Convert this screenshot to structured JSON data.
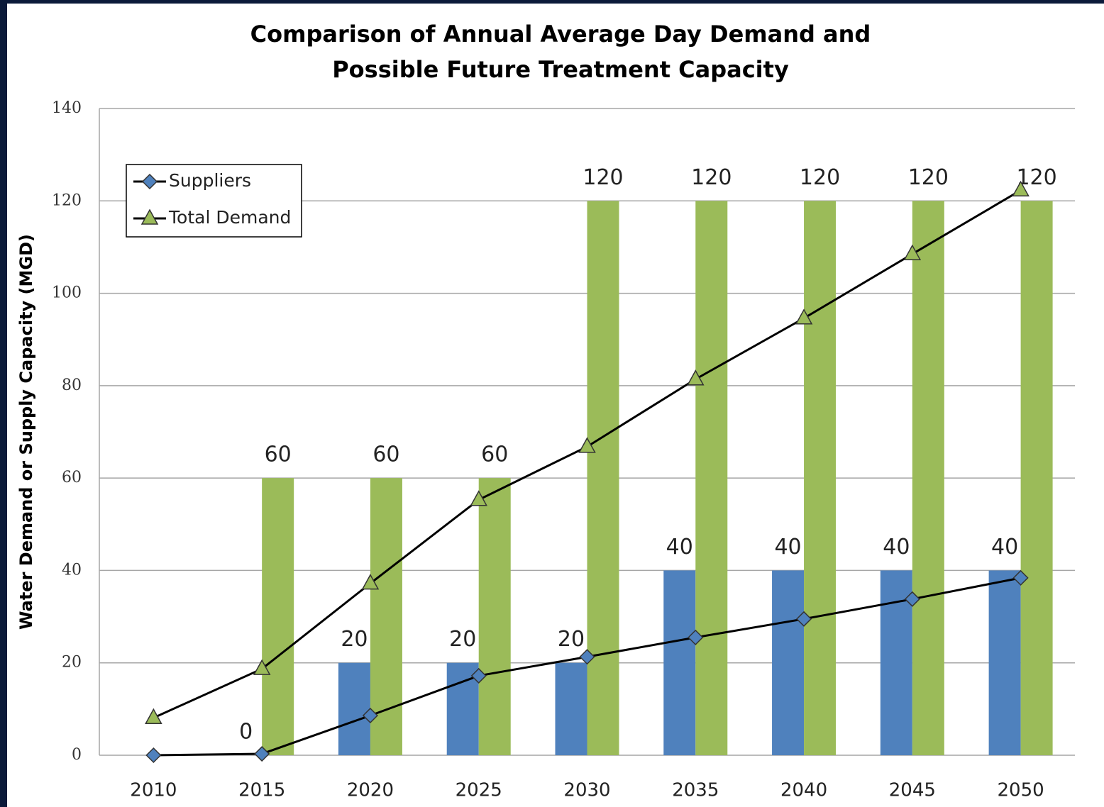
{
  "chart_data": {
    "type": "bar_line",
    "title": [
      "Comparison of Annual Average Day Demand and",
      "Possible Future Treatment Capacity"
    ],
    "y_label": "Water Demand or Supply Capacity (MGD)",
    "categories": [
      "2010",
      "2015",
      "2020",
      "2025",
      "2030",
      "2035",
      "2040",
      "2045",
      "2050"
    ],
    "ylim": [
      0,
      140
    ],
    "yticks": [
      0,
      20,
      40,
      60,
      80,
      100,
      120,
      140
    ],
    "grid": true,
    "legend": "upper left",
    "bars": [
      {
        "color": "#4f81bd",
        "values": [
          null,
          0,
          20,
          20,
          20,
          40,
          40,
          40,
          40
        ]
      },
      {
        "color": "#9bbb59",
        "values": [
          null,
          60,
          60,
          60,
          120,
          120,
          120,
          120,
          120
        ]
      }
    ],
    "series": [
      {
        "name": "Suppliers",
        "color": "#4f81bd",
        "marker": "diamond",
        "values": [
          0,
          0.3,
          8.6,
          17.2,
          21.3,
          25.5,
          29.5,
          33.8,
          38.4
        ]
      },
      {
        "name": "Total Demand",
        "color": "#9bbb59",
        "marker": "triangle",
        "values": [
          8.1,
          18.7,
          37.2,
          55.3,
          66.8,
          81.4,
          94.6,
          108.5,
          122.3
        ]
      }
    ]
  }
}
